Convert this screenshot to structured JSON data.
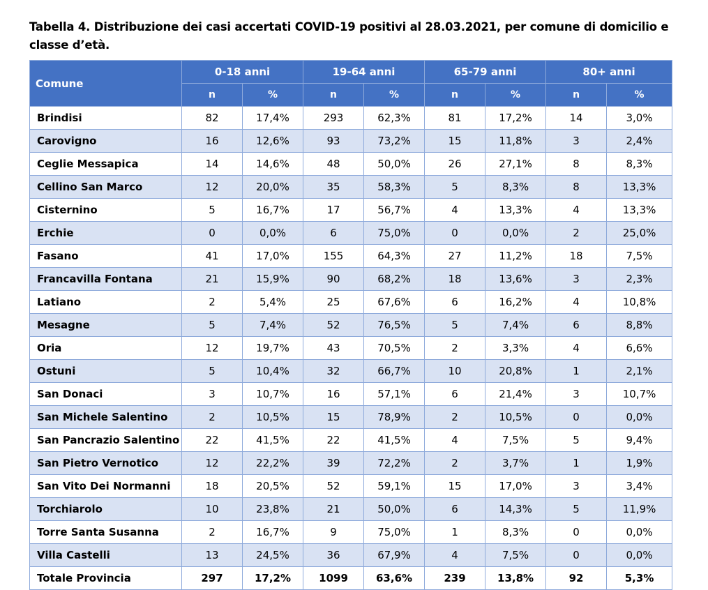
{
  "title": "Tabella 4. Distribuzione dei casi accertati COVID-19 positivi al 28.03.2021, per comune di domicilio e classe d’età.",
  "table": {
    "comune_header": "Comune",
    "groups": [
      "0-18 anni",
      "19-64 anni",
      "65-79 anni",
      "80+ anni"
    ],
    "sub_headers": [
      "n",
      "%",
      "n",
      "%",
      "n",
      "%",
      "n",
      "%"
    ],
    "rows": [
      {
        "comune": "Brindisi",
        "values": [
          "82",
          "17,4%",
          "293",
          "62,3%",
          "81",
          "17,2%",
          "14",
          "3,0%"
        ]
      },
      {
        "comune": "Carovigno",
        "values": [
          "16",
          "12,6%",
          "93",
          "73,2%",
          "15",
          "11,8%",
          "3",
          "2,4%"
        ]
      },
      {
        "comune": "Ceglie Messapica",
        "values": [
          "14",
          "14,6%",
          "48",
          "50,0%",
          "26",
          "27,1%",
          "8",
          "8,3%"
        ]
      },
      {
        "comune": "Cellino San Marco",
        "values": [
          "12",
          "20,0%",
          "35",
          "58,3%",
          "5",
          "8,3%",
          "8",
          "13,3%"
        ]
      },
      {
        "comune": "Cisternino",
        "values": [
          "5",
          "16,7%",
          "17",
          "56,7%",
          "4",
          "13,3%",
          "4",
          "13,3%"
        ]
      },
      {
        "comune": "Erchie",
        "values": [
          "0",
          "0,0%",
          "6",
          "75,0%",
          "0",
          "0,0%",
          "2",
          "25,0%"
        ]
      },
      {
        "comune": "Fasano",
        "values": [
          "41",
          "17,0%",
          "155",
          "64,3%",
          "27",
          "11,2%",
          "18",
          "7,5%"
        ]
      },
      {
        "comune": "Francavilla Fontana",
        "values": [
          "21",
          "15,9%",
          "90",
          "68,2%",
          "18",
          "13,6%",
          "3",
          "2,3%"
        ]
      },
      {
        "comune": "Latiano",
        "values": [
          "2",
          "5,4%",
          "25",
          "67,6%",
          "6",
          "16,2%",
          "4",
          "10,8%"
        ]
      },
      {
        "comune": "Mesagne",
        "values": [
          "5",
          "7,4%",
          "52",
          "76,5%",
          "5",
          "7,4%",
          "6",
          "8,8%"
        ]
      },
      {
        "comune": "Oria",
        "values": [
          "12",
          "19,7%",
          "43",
          "70,5%",
          "2",
          "3,3%",
          "4",
          "6,6%"
        ]
      },
      {
        "comune": "Ostuni",
        "values": [
          "5",
          "10,4%",
          "32",
          "66,7%",
          "10",
          "20,8%",
          "1",
          "2,1%"
        ]
      },
      {
        "comune": "San Donaci",
        "values": [
          "3",
          "10,7%",
          "16",
          "57,1%",
          "6",
          "21,4%",
          "3",
          "10,7%"
        ]
      },
      {
        "comune": "San Michele Salentino",
        "values": [
          "2",
          "10,5%",
          "15",
          "78,9%",
          "2",
          "10,5%",
          "0",
          "0,0%"
        ]
      },
      {
        "comune": "San Pancrazio Salentino",
        "values": [
          "22",
          "41,5%",
          "22",
          "41,5%",
          "4",
          "7,5%",
          "5",
          "9,4%"
        ]
      },
      {
        "comune": "San Pietro Vernotico",
        "values": [
          "12",
          "22,2%",
          "39",
          "72,2%",
          "2",
          "3,7%",
          "1",
          "1,9%"
        ]
      },
      {
        "comune": "San Vito Dei Normanni",
        "values": [
          "18",
          "20,5%",
          "52",
          "59,1%",
          "15",
          "17,0%",
          "3",
          "3,4%"
        ]
      },
      {
        "comune": "Torchiarolo",
        "values": [
          "10",
          "23,8%",
          "21",
          "50,0%",
          "6",
          "14,3%",
          "5",
          "11,9%"
        ]
      },
      {
        "comune": "Torre Santa Susanna",
        "values": [
          "2",
          "16,7%",
          "9",
          "75,0%",
          "1",
          "8,3%",
          "0",
          "0,0%"
        ]
      },
      {
        "comune": "Villa Castelli",
        "values": [
          "13",
          "24,5%",
          "36",
          "67,9%",
          "4",
          "7,5%",
          "0",
          "0,0%"
        ]
      }
    ],
    "total": {
      "comune": "Totale Provincia",
      "values": [
        "297",
        "17,2%",
        "1099",
        "63,6%",
        "239",
        "13,8%",
        "92",
        "5,3%"
      ]
    }
  },
  "colors": {
    "header_bg": "#4472c4",
    "header_text": "#ffffff",
    "band": "#d9e2f3",
    "border": "#8eaadb"
  }
}
